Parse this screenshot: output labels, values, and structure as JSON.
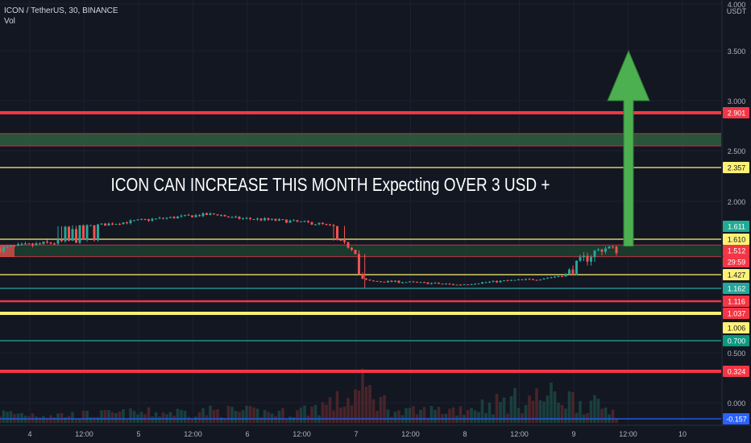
{
  "legend": {
    "symbol_line": "ICON / TetherUS, 30, BINANCE",
    "indicator": "Vol"
  },
  "chart_data": {
    "type": "candlestick",
    "title": "ICON / TetherUS, 30, BINANCE",
    "annotation": "ICON CAN INCREASE THIS MONTH Expecting OVER 3 USD +",
    "y_unit": "USDT",
    "y_range": [
      -0.2,
      4.0
    ],
    "y_ticks": [
      4.0,
      3.5,
      3.0,
      2.5,
      2.0,
      0.5,
      0.0
    ],
    "y_tick_labels": [
      "4.000",
      "3.500",
      "3.000",
      "2.500",
      "2.000",
      "0.500",
      "0.000"
    ],
    "x_ticks": [
      "4",
      "12:00",
      "5",
      "12:00",
      "6",
      "12:00",
      "7",
      "12:00",
      "8",
      "12:00",
      "9",
      "12:00",
      "10"
    ],
    "price_path": [
      [
        0,
        1.53
      ],
      [
        6,
        1.57
      ],
      [
        12,
        1.61
      ],
      [
        16,
        1.66
      ],
      [
        20,
        1.71
      ],
      [
        24,
        1.75
      ],
      [
        28,
        1.79
      ],
      [
        30,
        1.8
      ],
      [
        32,
        1.74
      ],
      [
        36,
        1.72
      ],
      [
        40,
        1.69
      ],
      [
        44,
        1.65
      ],
      [
        47,
        1.58
      ],
      [
        49,
        1.52
      ],
      [
        50,
        1.34
      ],
      [
        51,
        1.3
      ],
      [
        55,
        1.29
      ],
      [
        58,
        1.27
      ],
      [
        61,
        1.25
      ],
      [
        63,
        1.23
      ],
      [
        66,
        1.27
      ],
      [
        70,
        1.31
      ],
      [
        74,
        1.34
      ],
      [
        77,
        1.4
      ],
      [
        81,
        1.49
      ],
      [
        84,
        1.54
      ],
      [
        85,
        1.52
      ]
    ],
    "volume_profile": [
      [
        0,
        0.05
      ],
      [
        10,
        0.04
      ],
      [
        20,
        0.05
      ],
      [
        30,
        0.06
      ],
      [
        40,
        0.05
      ],
      [
        48,
        0.12
      ],
      [
        50,
        0.18
      ],
      [
        55,
        0.05
      ],
      [
        63,
        0.07
      ],
      [
        70,
        0.11
      ],
      [
        77,
        0.14
      ],
      [
        85,
        0.06
      ]
    ],
    "levels": [
      {
        "price": 2.901,
        "color": "#f23645",
        "style": "thick",
        "label": "2.901",
        "label_bg": "#f23645"
      },
      {
        "price": 2.357,
        "color": "#fff176",
        "style": "thin",
        "label": "2.357",
        "label_bg": "#fff176"
      },
      {
        "price": 1.61,
        "color": "#fff176",
        "style": "thin",
        "label": "1.610",
        "label_bg": "#fff176"
      },
      {
        "price": 1.427,
        "color": "#fff176",
        "style": "thin",
        "label": "1.427",
        "label_bg": "#fff176"
      },
      {
        "price": 1.162,
        "color": "#26a69a",
        "style": "thin",
        "label": "1.162",
        "label_bg": "#26a69a"
      },
      {
        "price": 1.116,
        "color": "#f23645",
        "style": "medium",
        "label": "1.116",
        "label_bg": "#f23645"
      },
      {
        "price": 1.037,
        "color": "#fff176",
        "style": "thick",
        "label": "1.037",
        "label_bg": "#f23645"
      },
      {
        "price": 1.006,
        "color": "#fff176",
        "style": "none",
        "label": "1.006",
        "label_bg": "#fff176"
      },
      {
        "price": 0.7,
        "color": "#26a69a",
        "style": "thin",
        "label": "0.700",
        "label_bg": "#089981"
      },
      {
        "price": 0.324,
        "color": "#f23645",
        "style": "thick",
        "label": "0.324",
        "label_bg": "#f23645"
      },
      {
        "price": -0.157,
        "color": "#2962ff",
        "style": "thin",
        "label": "-0.157",
        "label_bg": "#2962ff"
      }
    ],
    "price_labels": [
      {
        "price": 1.611,
        "label": "1.611",
        "label_bg": "#22ab94"
      },
      {
        "price": 1.512,
        "label": "1.512",
        "label_bg": "#f23645"
      }
    ],
    "countdown": "29:59",
    "zones": [
      {
        "from": 2.55,
        "to": 2.68,
        "color": "#2e5e3e"
      },
      {
        "from": 1.49,
        "to": 1.56,
        "color": "#1e4030"
      }
    ],
    "arrow": {
      "x": 84,
      "from": 1.55,
      "to": 3.5,
      "color": "#4caf50"
    },
    "colors": {
      "up": "#26a69a",
      "down": "#ef5350",
      "background": "#131722",
      "text": "#b2b5be"
    }
  }
}
